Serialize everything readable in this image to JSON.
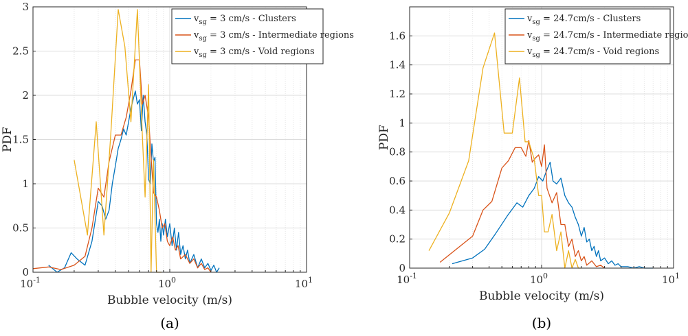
{
  "chart_data": [
    {
      "type": "line",
      "panel_label": "(a)",
      "xlabel": "Bubble velocity (m/s)",
      "ylabel": "PDF",
      "xscale": "log",
      "xlim": [
        0.1,
        10
      ],
      "ylim": [
        0,
        3
      ],
      "yticks": [
        "0",
        "0.5",
        "1",
        "1.5",
        "2",
        "2.5",
        "3"
      ],
      "xticks": [
        {
          "base": "10",
          "exp": "-1"
        },
        {
          "base": "10",
          "exp": "0"
        },
        {
          "base": "10",
          "exp": "1"
        }
      ],
      "grid": true,
      "legend_position": "top-right",
      "series": [
        {
          "name_main": "v",
          "name_sub": "sg",
          "name_rest": " = 3 cm/s - Clusters",
          "color": "#0072bd",
          "x": [
            0.13,
            0.15,
            0.17,
            0.19,
            0.21,
            0.24,
            0.27,
            0.3,
            0.32,
            0.34,
            0.36,
            0.38,
            0.4,
            0.42,
            0.44,
            0.46,
            0.48,
            0.5,
            0.52,
            0.54,
            0.56,
            0.58,
            0.6,
            0.62,
            0.64,
            0.66,
            0.68,
            0.7,
            0.72,
            0.74,
            0.76,
            0.78,
            0.8,
            0.82,
            0.84,
            0.86,
            0.88,
            0.9,
            0.93,
            0.96,
            1.0,
            1.04,
            1.08,
            1.12,
            1.16,
            1.2,
            1.25,
            1.3,
            1.35,
            1.4,
            1.5,
            1.6,
            1.7,
            1.8,
            1.9,
            2.0,
            2.1,
            2.2,
            2.3
          ],
          "y": [
            0.08,
            0.0,
            0.05,
            0.22,
            0.15,
            0.08,
            0.35,
            0.8,
            0.75,
            0.6,
            0.7,
            1.0,
            1.2,
            1.4,
            1.5,
            1.62,
            1.55,
            1.7,
            1.85,
            1.95,
            2.05,
            1.9,
            1.95,
            1.6,
            2.0,
            1.7,
            1.55,
            1.05,
            1.0,
            1.45,
            1.25,
            1.3,
            0.55,
            0.45,
            0.6,
            0.35,
            0.55,
            0.42,
            0.6,
            0.4,
            0.55,
            0.3,
            0.5,
            0.25,
            0.45,
            0.2,
            0.3,
            0.15,
            0.25,
            0.1,
            0.2,
            0.05,
            0.15,
            0.05,
            0.1,
            0.02,
            0.08,
            0.0,
            0.05
          ]
        },
        {
          "name_main": "v",
          "name_sub": "sg",
          "name_rest": " = 3 cm/s - Intermediate regions",
          "color": "#d95319",
          "x": [
            0.1,
            0.13,
            0.16,
            0.2,
            0.24,
            0.27,
            0.3,
            0.33,
            0.36,
            0.4,
            0.44,
            0.48,
            0.52,
            0.56,
            0.6,
            0.63,
            0.66,
            0.7,
            0.73,
            0.76,
            0.8,
            0.84,
            0.88,
            0.92,
            0.96,
            1.0,
            1.05,
            1.1,
            1.15,
            1.2,
            1.3,
            1.4,
            1.5,
            1.6,
            1.7,
            1.8,
            1.9,
            2.0
          ],
          "y": [
            0.04,
            0.06,
            0.03,
            0.08,
            0.18,
            0.5,
            0.95,
            0.85,
            1.25,
            1.55,
            1.55,
            1.75,
            2.05,
            2.4,
            2.4,
            1.9,
            2.0,
            1.75,
            1.3,
            0.9,
            0.85,
            0.7,
            0.5,
            0.55,
            0.35,
            0.3,
            0.4,
            0.25,
            0.3,
            0.15,
            0.2,
            0.1,
            0.15,
            0.05,
            0.1,
            0.03,
            0.05,
            0.0
          ]
        },
        {
          "name_main": "v",
          "name_sub": "sg",
          "name_rest": " = 3 cm/s - Void regions",
          "color": "#edb120",
          "x": [
            0.2,
            0.25,
            0.29,
            0.33,
            0.37,
            0.42,
            0.47,
            0.52,
            0.58,
            0.63,
            0.66,
            0.7,
            0.73,
            0.76,
            0.8,
            0.84,
            0.87
          ],
          "y": [
            1.27,
            0.42,
            1.7,
            0.42,
            1.55,
            2.97,
            2.55,
            1.7,
            2.97,
            1.55,
            0.85,
            2.12,
            0.0,
            1.27,
            0.0,
            0.0,
            0.0
          ]
        }
      ]
    },
    {
      "type": "line",
      "panel_label": "(b)",
      "xlabel": "Bubble velocity (m/s)",
      "ylabel": "PDF",
      "xscale": "log",
      "xlim": [
        0.1,
        10
      ],
      "ylim": [
        0,
        1.8
      ],
      "yticks": [
        "0",
        "0.2",
        "0.4",
        "0.6",
        "0.8",
        "1",
        "1.2",
        "1.4",
        "1.6"
      ],
      "xticks": [
        {
          "base": "10",
          "exp": "-1"
        },
        {
          "base": "10",
          "exp": "0"
        },
        {
          "base": "10",
          "exp": "1"
        }
      ],
      "grid": true,
      "legend_position": "top-right",
      "series": [
        {
          "name_main": "v",
          "name_sub": "sg",
          "name_rest": " = 24.7cm/s - Clusters",
          "color": "#0072bd",
          "x": [
            0.21,
            0.3,
            0.37,
            0.45,
            0.55,
            0.65,
            0.72,
            0.8,
            0.88,
            0.95,
            1.02,
            1.1,
            1.16,
            1.22,
            1.3,
            1.4,
            1.5,
            1.6,
            1.7,
            1.8,
            1.9,
            2.0,
            2.1,
            2.2,
            2.3,
            2.4,
            2.5,
            2.6,
            2.7,
            2.8,
            3.0,
            3.2,
            3.4,
            3.6,
            3.8,
            4.0,
            4.5,
            5.0,
            5.5,
            6.0,
            6.5,
            7.0
          ],
          "y": [
            0.03,
            0.07,
            0.13,
            0.24,
            0.36,
            0.45,
            0.42,
            0.5,
            0.55,
            0.63,
            0.6,
            0.68,
            0.73,
            0.6,
            0.58,
            0.62,
            0.5,
            0.45,
            0.42,
            0.35,
            0.3,
            0.22,
            0.28,
            0.18,
            0.2,
            0.12,
            0.15,
            0.08,
            0.12,
            0.05,
            0.07,
            0.03,
            0.05,
            0.02,
            0.03,
            0.01,
            0.01,
            0.0,
            0.01,
            0.0,
            0.0,
            0.0
          ]
        },
        {
          "name_main": "v",
          "name_sub": "sg",
          "name_rest": " = 24.7cm/s - Intermediate regions",
          "color": "#d95319",
          "x": [
            0.17,
            0.3,
            0.36,
            0.42,
            0.5,
            0.56,
            0.63,
            0.7,
            0.76,
            0.8,
            0.85,
            0.9,
            0.95,
            1.0,
            1.05,
            1.1,
            1.2,
            1.3,
            1.4,
            1.5,
            1.6,
            1.7,
            1.8,
            1.9,
            2.0,
            2.1,
            2.2,
            2.4,
            2.6,
            2.8,
            3.0
          ],
          "y": [
            0.04,
            0.22,
            0.4,
            0.46,
            0.69,
            0.74,
            0.83,
            0.83,
            0.77,
            0.88,
            0.73,
            0.76,
            0.78,
            0.7,
            0.85,
            0.55,
            0.45,
            0.52,
            0.3,
            0.3,
            0.15,
            0.2,
            0.08,
            0.12,
            0.05,
            0.08,
            0.02,
            0.05,
            0.01,
            0.02,
            0.0
          ]
        },
        {
          "name_main": "v",
          "name_sub": "sg",
          "name_rest": " = 24.7cm/s - Void regions",
          "color": "#edb120",
          "x": [
            0.14,
            0.2,
            0.28,
            0.36,
            0.44,
            0.52,
            0.6,
            0.68,
            0.75,
            0.8,
            0.88,
            0.95,
            1.0,
            1.05,
            1.12,
            1.2,
            1.3,
            1.4,
            1.5,
            1.6,
            1.7,
            1.8,
            1.9,
            2.0
          ],
          "y": [
            0.12,
            0.38,
            0.74,
            1.38,
            1.62,
            0.93,
            0.93,
            1.31,
            0.87,
            0.87,
            0.75,
            0.5,
            0.5,
            0.25,
            0.25,
            0.37,
            0.12,
            0.25,
            0.0,
            0.12,
            0.0,
            0.06,
            0.0,
            0.0
          ]
        }
      ]
    }
  ]
}
